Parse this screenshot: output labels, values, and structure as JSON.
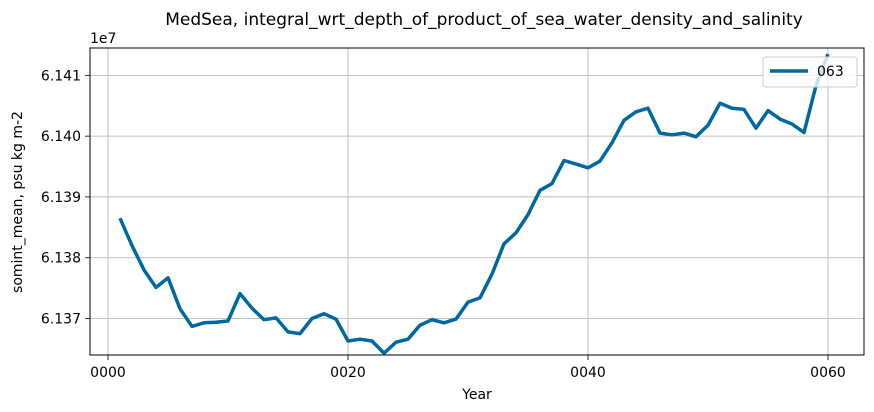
{
  "chart_data": {
    "type": "line",
    "title": "MedSea, integral_wrt_depth_of_product_of_sea_water_density_and_salinity",
    "xlabel": "Year",
    "ylabel": "somint_mean, psu kg m-2",
    "y_offset_label": "1e7",
    "xlim": [
      -1.5,
      63
    ],
    "ylim": [
      61364000,
      61414500
    ],
    "x_ticks": [
      0,
      20,
      40,
      60
    ],
    "x_tick_labels": [
      "0000",
      "0020",
      "0040",
      "0060"
    ],
    "y_ticks": [
      61370000,
      61380000,
      61390000,
      61400000,
      61410000
    ],
    "y_tick_labels": [
      "6.137",
      "6.138",
      "6.139",
      "6.140",
      "6.141"
    ],
    "grid": true,
    "legend_position": "top-right",
    "series": [
      {
        "name": "063",
        "color": "#0068a0",
        "x": [
          1,
          2,
          3,
          4,
          5,
          6,
          7,
          8,
          9,
          10,
          11,
          12,
          13,
          14,
          15,
          16,
          17,
          18,
          19,
          20,
          21,
          22,
          23,
          24,
          25,
          26,
          27,
          28,
          29,
          30,
          31,
          32,
          33,
          34,
          35,
          36,
          37,
          38,
          39,
          40,
          41,
          42,
          43,
          44,
          45,
          46,
          47,
          48,
          49,
          50,
          51,
          52,
          53,
          54,
          55,
          56,
          57,
          58,
          59,
          60
        ],
        "values": [
          61386500,
          61382000,
          61378000,
          61375100,
          61376700,
          61371600,
          61368700,
          61369300,
          61369400,
          61369600,
          61374100,
          61371700,
          61369800,
          61370100,
          61367800,
          61367500,
          61370000,
          61370800,
          61369900,
          61366300,
          61366600,
          61366300,
          61364300,
          61366100,
          61366600,
          61368900,
          61369800,
          61369300,
          61369900,
          61372700,
          61373400,
          61377300,
          61382300,
          61384100,
          61387100,
          61391100,
          61392200,
          61396000,
          61395400,
          61394800,
          61395900,
          61398900,
          61402600,
          61404000,
          61404600,
          61400500,
          61400200,
          61400500,
          61399900,
          61401800,
          61405400,
          61404600,
          61404400,
          61401300,
          61404200,
          61402800,
          61402000,
          61400600,
          61408300,
          61413500
        ]
      }
    ]
  }
}
